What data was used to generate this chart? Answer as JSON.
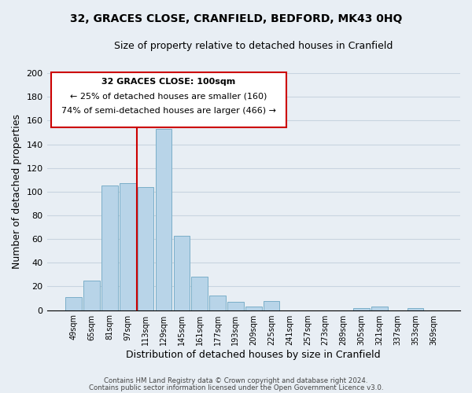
{
  "title": "32, GRACES CLOSE, CRANFIELD, BEDFORD, MK43 0HQ",
  "subtitle": "Size of property relative to detached houses in Cranfield",
  "xlabel": "Distribution of detached houses by size in Cranfield",
  "ylabel": "Number of detached properties",
  "bar_color": "#b8d4e8",
  "bar_edge_color": "#7aaec8",
  "categories": [
    "49sqm",
    "65sqm",
    "81sqm",
    "97sqm",
    "113sqm",
    "129sqm",
    "145sqm",
    "161sqm",
    "177sqm",
    "193sqm",
    "209sqm",
    "225sqm",
    "241sqm",
    "257sqm",
    "273sqm",
    "289sqm",
    "305sqm",
    "321sqm",
    "337sqm",
    "353sqm",
    "369sqm"
  ],
  "values": [
    11,
    25,
    105,
    107,
    104,
    153,
    63,
    28,
    12,
    7,
    3,
    8,
    0,
    0,
    0,
    0,
    2,
    3,
    0,
    2,
    0
  ],
  "ylim": [
    0,
    200
  ],
  "yticks": [
    0,
    20,
    40,
    60,
    80,
    100,
    120,
    140,
    160,
    180,
    200
  ],
  "vline_color": "#cc0000",
  "annotation_title": "32 GRACES CLOSE: 100sqm",
  "annotation_line1": "← 25% of detached houses are smaller (160)",
  "annotation_line2": "74% of semi-detached houses are larger (466) →",
  "annotation_box_color": "#ffffff",
  "annotation_box_edge": "#cc0000",
  "footer1": "Contains HM Land Registry data © Crown copyright and database right 2024.",
  "footer2": "Contains public sector information licensed under the Open Government Licence v3.0.",
  "background_color": "#e8eef4",
  "plot_background": "#e8eef4",
  "grid_color": "#c8d4e0"
}
